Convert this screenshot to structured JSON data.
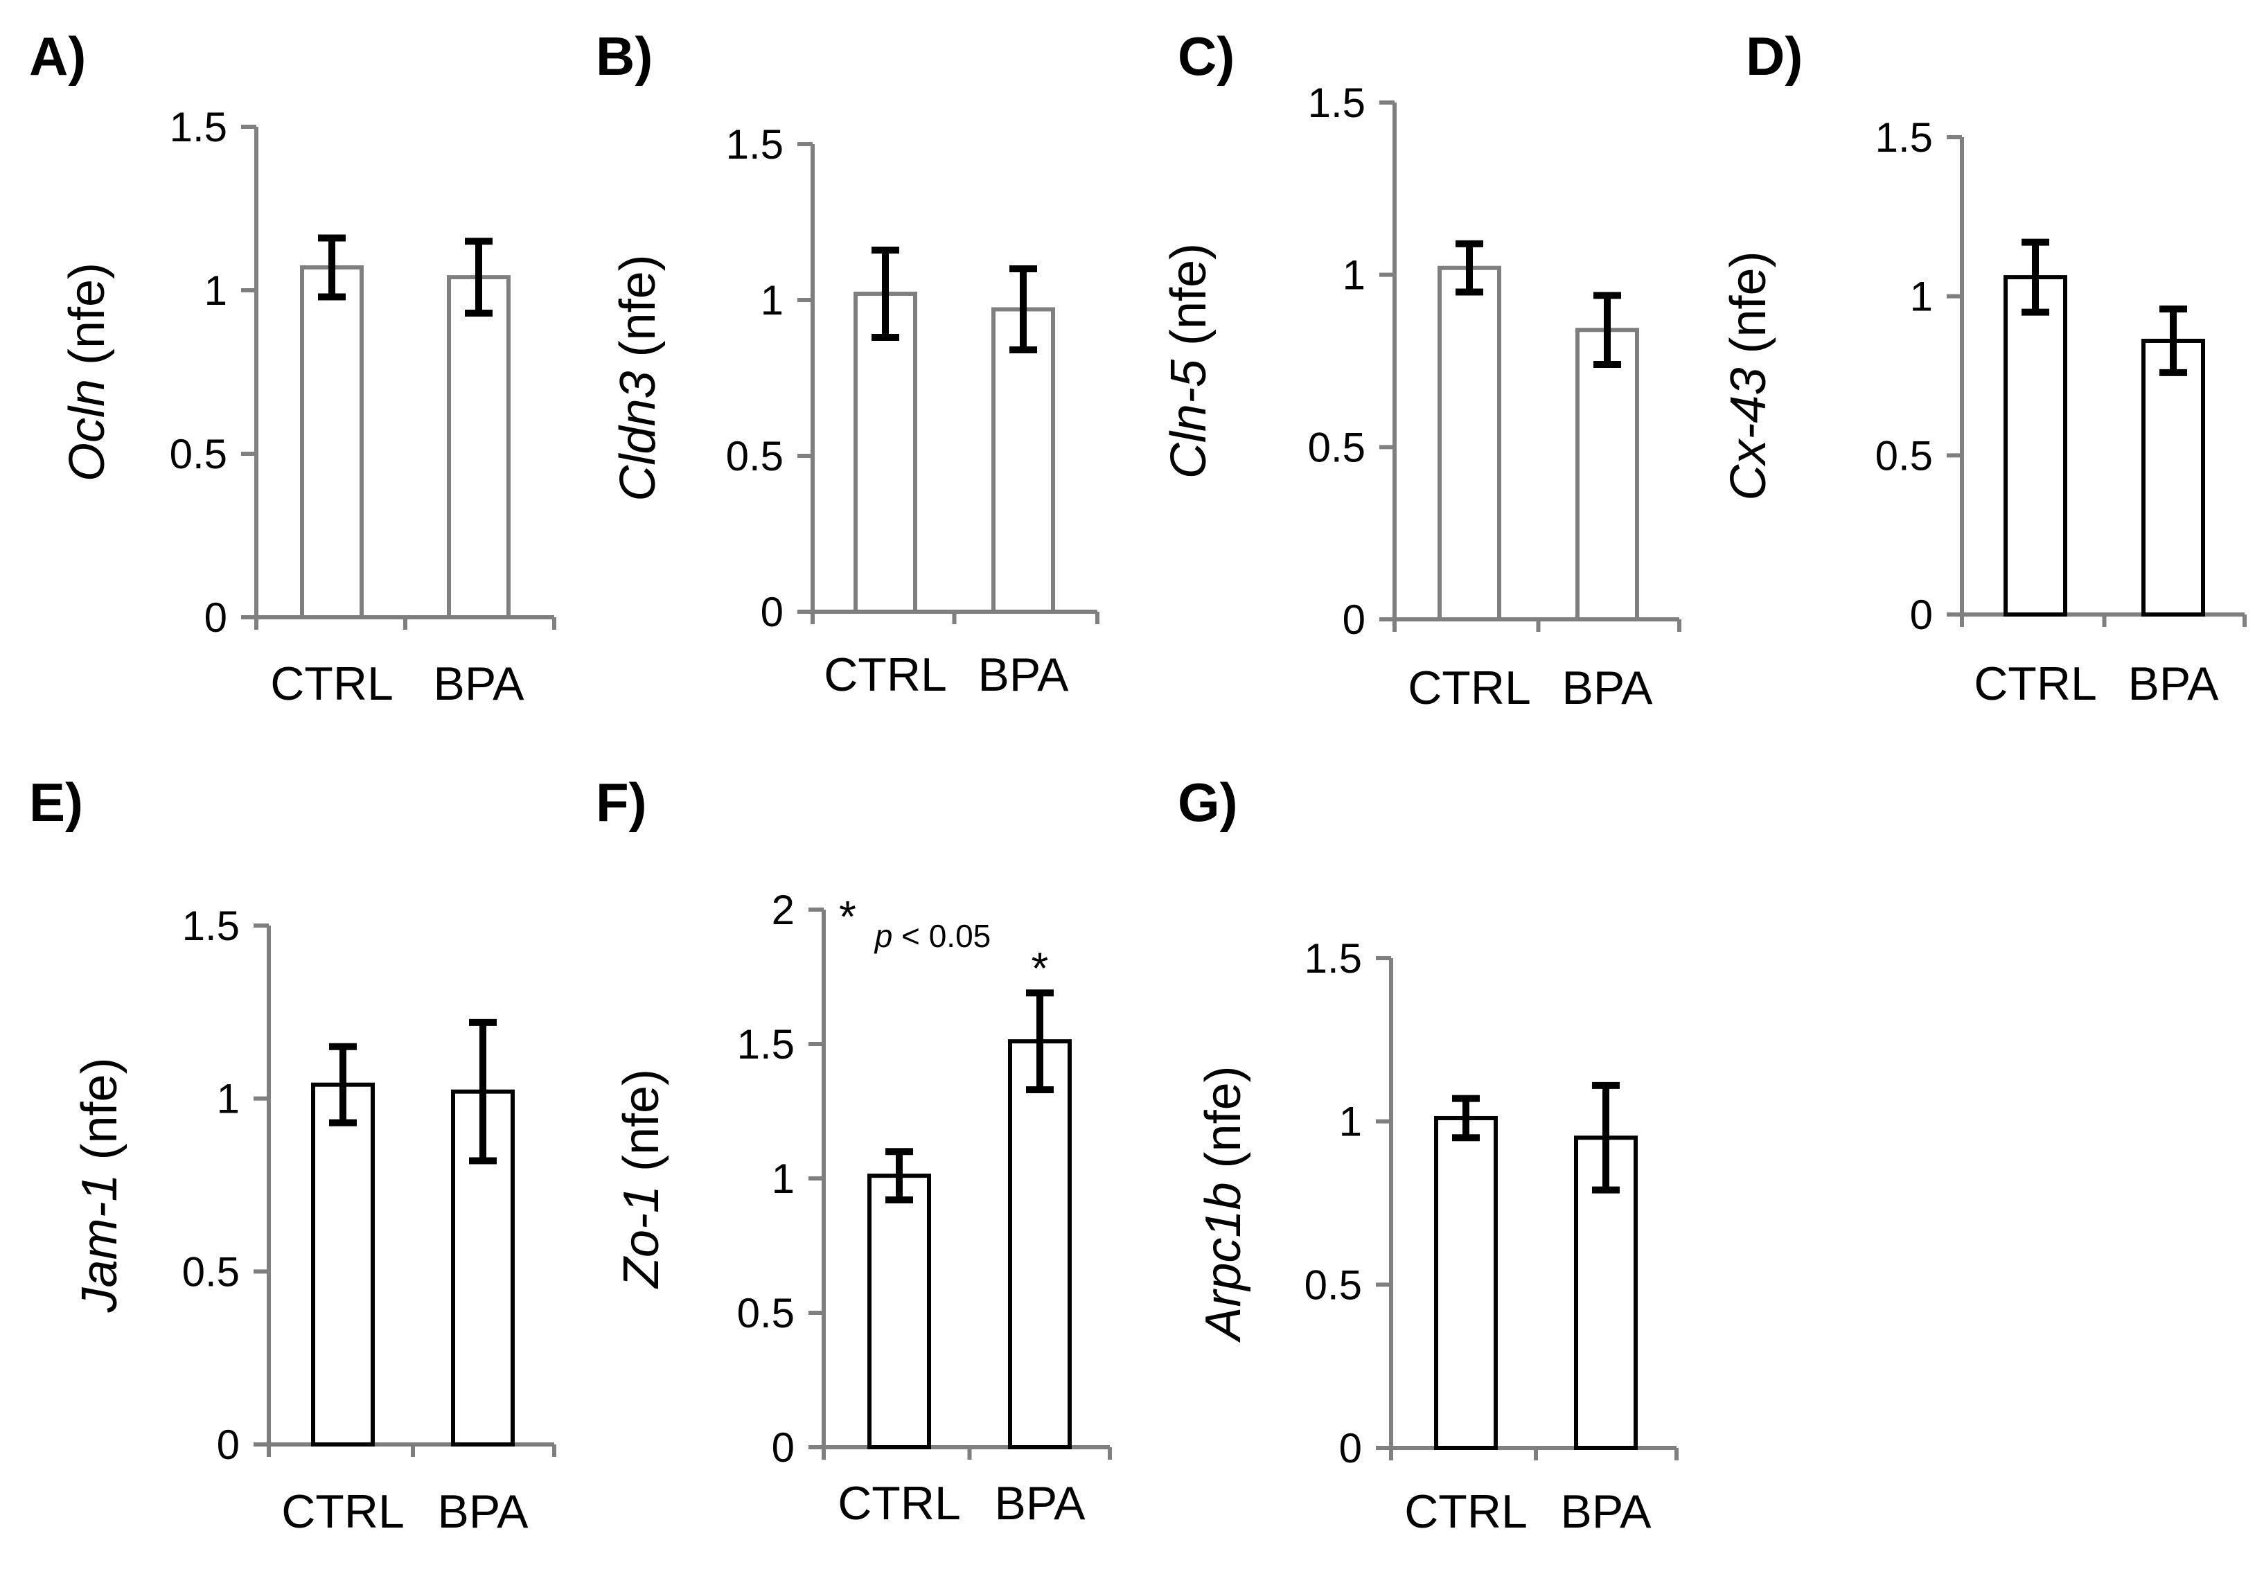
{
  "figure_title": "",
  "chart_data": [
    {
      "panel": "A)",
      "type": "bar",
      "gene": "Ocln",
      "unit": "(nfe)",
      "categories": [
        "CTRL",
        "BPA"
      ],
      "values": [
        1.07,
        1.04
      ],
      "errors": [
        0.09,
        0.11
      ],
      "yticks": [
        "0",
        "0.5",
        "1",
        "1.5"
      ],
      "ylim": [
        0,
        1.5
      ],
      "axis_color": "#7f7f7f",
      "bar_color": "#7f7f7f"
    },
    {
      "panel": "B)",
      "type": "bar",
      "gene": "Cldn3",
      "unit": "(nfe)",
      "categories": [
        "CTRL",
        "BPA"
      ],
      "values": [
        1.02,
        0.97
      ],
      "errors": [
        0.14,
        0.13
      ],
      "yticks": [
        "0",
        "0.5",
        "1",
        "1.5"
      ],
      "ylim": [
        0,
        1.5
      ],
      "axis_color": "#7f7f7f",
      "bar_color": "#7f7f7f"
    },
    {
      "panel": "C)",
      "type": "bar",
      "gene": "Cln-5",
      "unit": "(nfe)",
      "categories": [
        "CTRL",
        "BPA"
      ],
      "values": [
        1.02,
        0.84
      ],
      "errors": [
        0.07,
        0.1
      ],
      "yticks": [
        "0",
        "0.5",
        "1",
        "1.5"
      ],
      "ylim": [
        0,
        1.5
      ],
      "axis_color": "#7f7f7f",
      "bar_color": "#7f7f7f"
    },
    {
      "panel": "D)",
      "type": "bar",
      "gene": "Cx-43",
      "unit": "(nfe)",
      "categories": [
        "CTRL",
        "BPA"
      ],
      "values": [
        1.06,
        0.86
      ],
      "errors": [
        0.11,
        0.1
      ],
      "yticks": [
        "0",
        "0.5",
        "1",
        "1.5"
      ],
      "ylim": [
        0,
        1.5
      ],
      "axis_color": "#7f7f7f",
      "bar_color": "#000000"
    },
    {
      "panel": "E)",
      "type": "bar",
      "gene": "Jam-1",
      "unit": "(nfe)",
      "categories": [
        "CTRL",
        "BPA"
      ],
      "values": [
        1.04,
        1.02
      ],
      "errors": [
        0.11,
        0.2
      ],
      "yticks": [
        "0",
        "0.5",
        "1",
        "1.5"
      ],
      "ylim": [
        0,
        1.5
      ],
      "axis_color": "#7f7f7f",
      "bar_color": "#000000"
    },
    {
      "panel": "F)",
      "type": "bar",
      "gene": "Zo-1",
      "unit": "(nfe)",
      "categories": [
        "CTRL",
        "BPA"
      ],
      "values": [
        1.01,
        1.51
      ],
      "errors": [
        0.09,
        0.18
      ],
      "yticks": [
        "0",
        "0.5",
        "1",
        "1.5",
        "2"
      ],
      "ylim": [
        0,
        2
      ],
      "axis_color": "#7f7f7f",
      "bar_color": "#000000",
      "note": {
        "star": "*",
        "p": "p",
        "rest": " < 0.05"
      },
      "significance": [
        "",
        "*"
      ]
    },
    {
      "panel": "G)",
      "type": "bar",
      "gene": "Arpc1b",
      "unit": "(nfe)",
      "categories": [
        "CTRL",
        "BPA"
      ],
      "values": [
        1.01,
        0.95
      ],
      "errors": [
        0.06,
        0.16
      ],
      "yticks": [
        "0",
        "0.5",
        "1",
        "1.5"
      ],
      "ylim": [
        0,
        1.5
      ],
      "axis_color": "#7f7f7f",
      "bar_color": "#000000"
    }
  ]
}
